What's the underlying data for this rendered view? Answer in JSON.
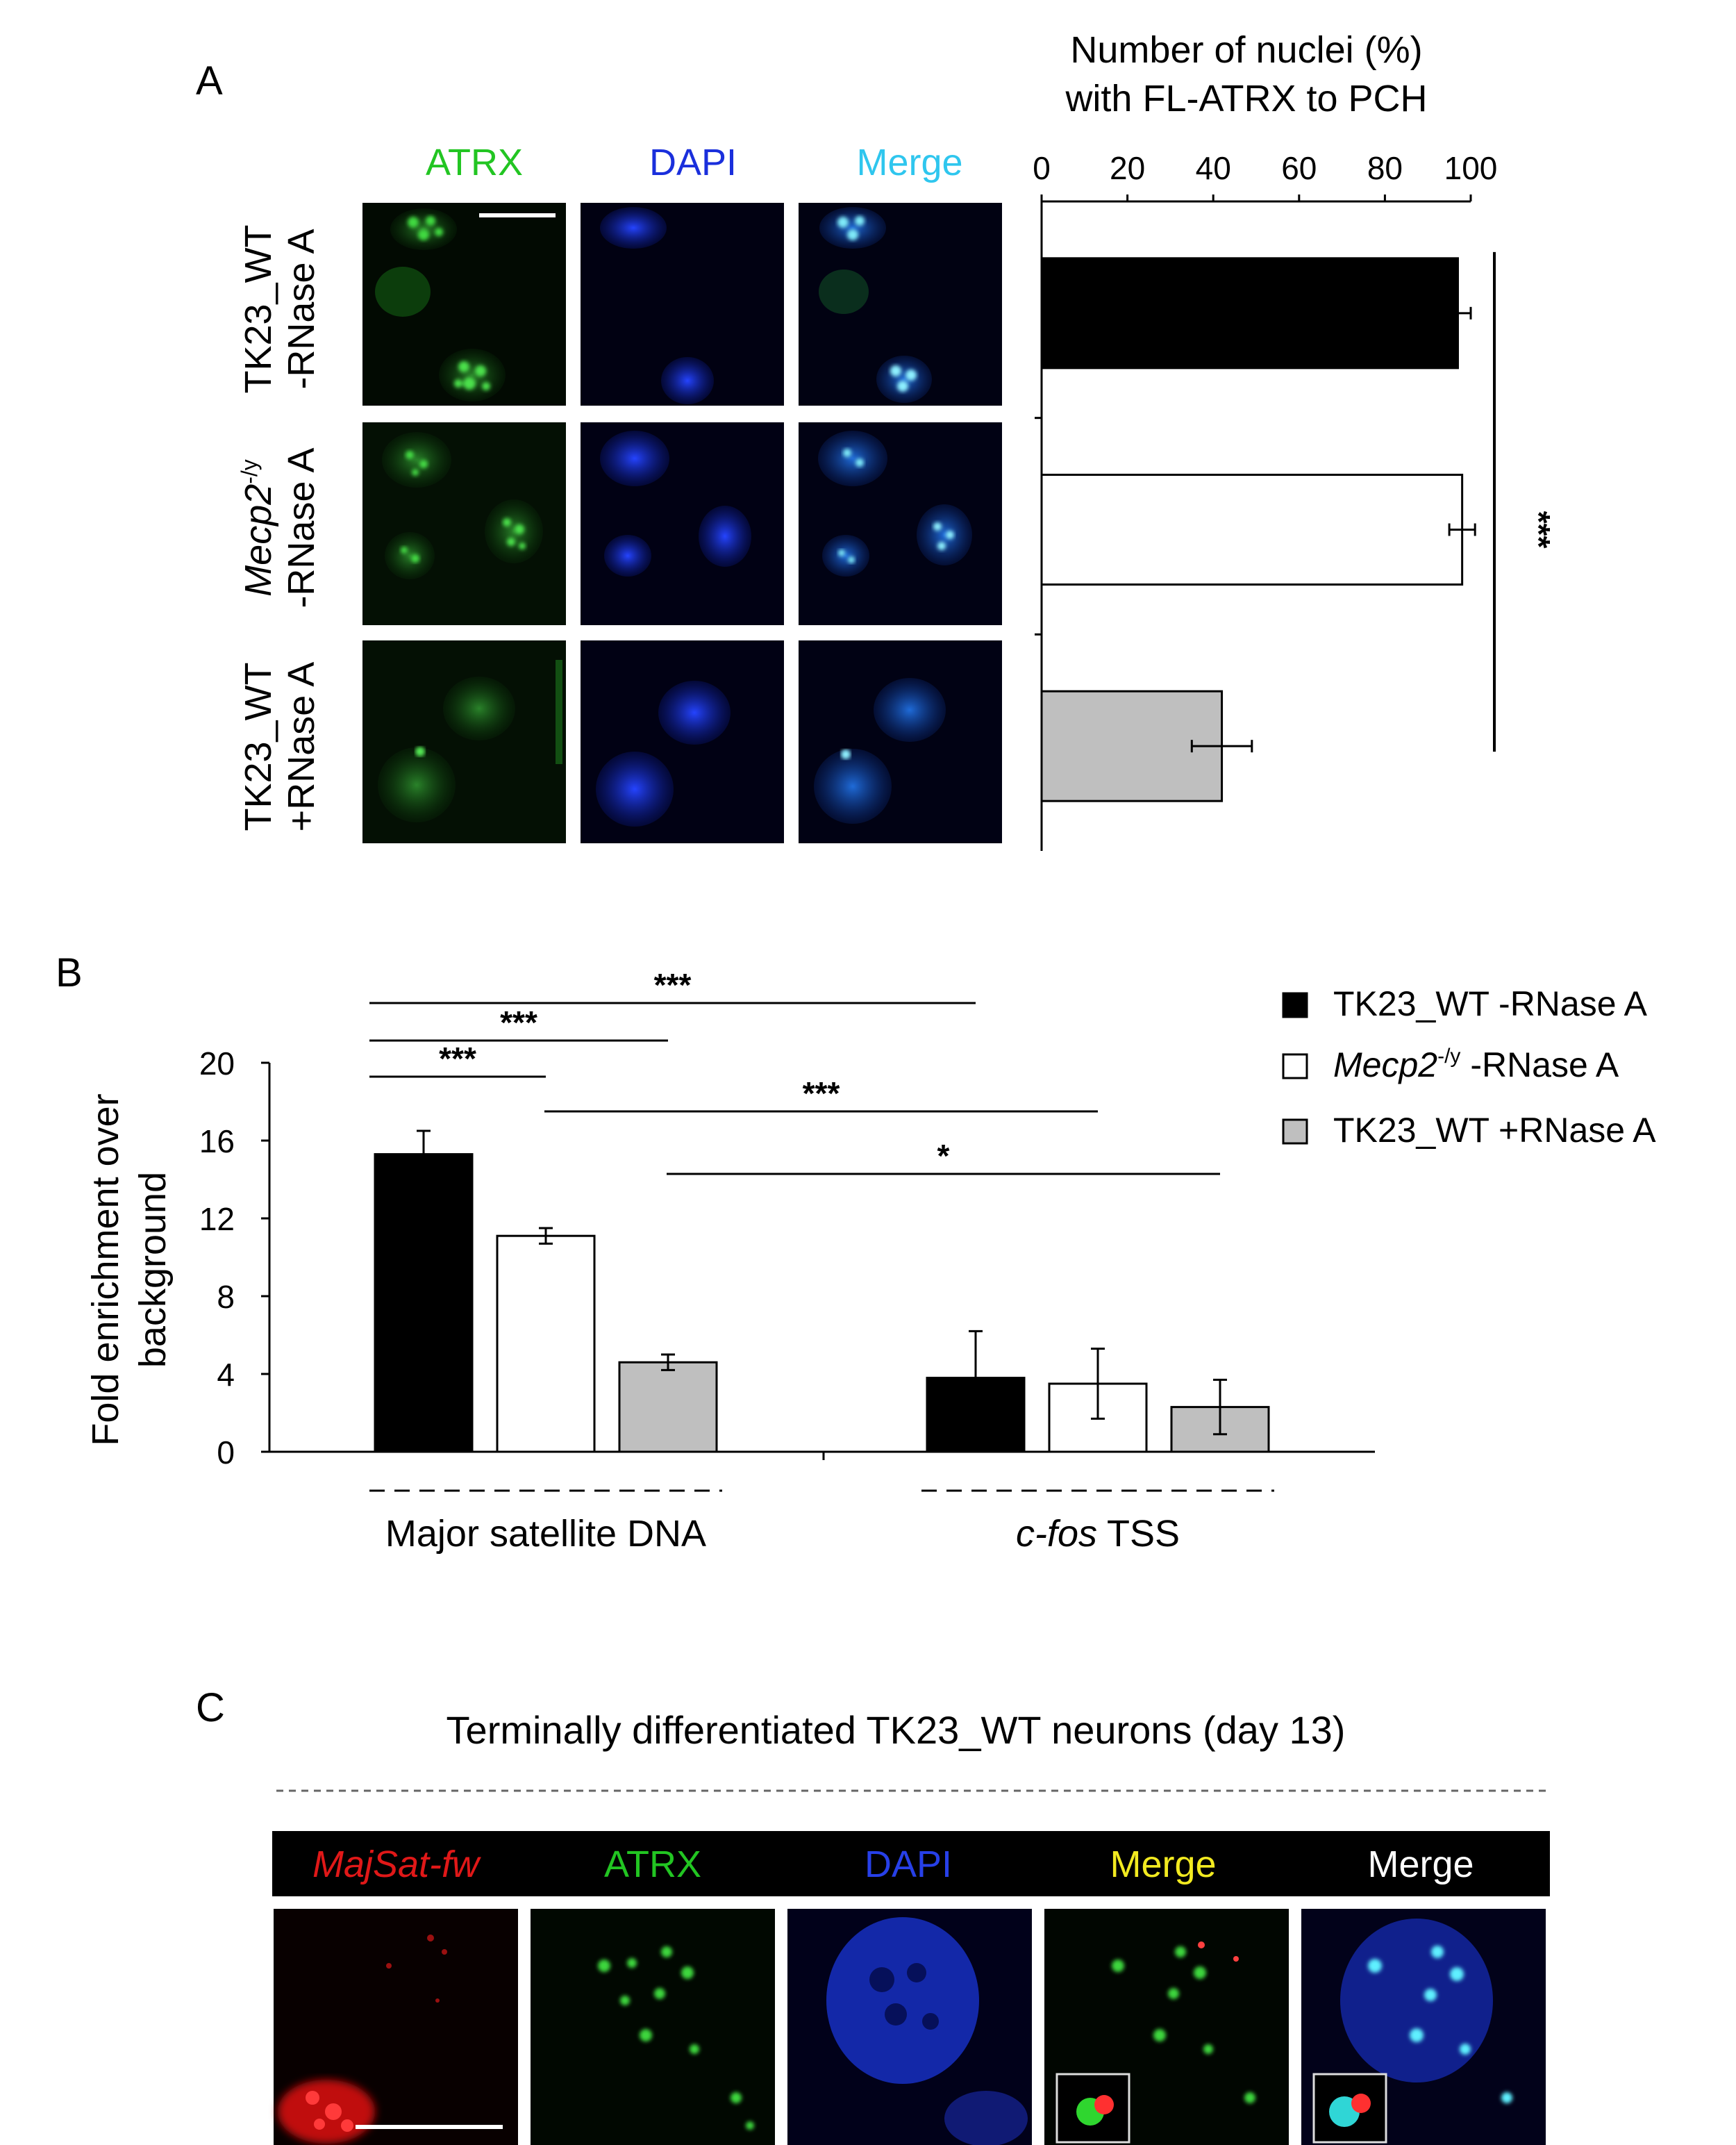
{
  "panel_letters": {
    "a": "A",
    "b": "B",
    "c": "C"
  },
  "panel_a": {
    "channels": [
      "ATRX",
      "DAPI",
      "Merge"
    ],
    "rows": [
      {
        "line1": "TK23_WT",
        "line2": "-RNase A",
        "italic_gene": "",
        "sup": ""
      },
      {
        "line1": "",
        "line2": "-RNase A",
        "italic_gene": "Mecp2",
        "sup": "-/y"
      },
      {
        "line1": "TK23_WT",
        "line2": "+RNase A",
        "italic_gene": "",
        "sup": ""
      }
    ],
    "significance": "***"
  },
  "colors": {
    "atrx_green": "#22c522",
    "dapi_blue": "#1a2fdc",
    "merge_cyan": "#2fc6ee",
    "majsat_red": "#e01818",
    "merge_yellow": "#f2ea20",
    "merge_white": "#ffffff",
    "bar_black": "#000000",
    "bar_white": "#ffffff",
    "bar_gray": "#bfbfbf"
  },
  "chart_data": [
    {
      "type": "bar",
      "orientation": "horizontal",
      "title": "Number of nuclei (%) with  FL-ATRX  to PCH",
      "title_lines": [
        "Number of nuclei (%)",
        "with  FL-ATRX  to PCH"
      ],
      "categories": [
        "TK23_WT -RNase A",
        "Mecp2-/y -RNase A",
        "TK23_WT +RNase A"
      ],
      "values": [
        97,
        98,
        42
      ],
      "errors": [
        3,
        3,
        7
      ],
      "xlim": [
        0,
        100
      ],
      "xticks": [
        "0",
        "20",
        "40",
        "60",
        "80",
        "100"
      ],
      "axis_position": "top",
      "grid": false,
      "significance": [
        {
          "between": [
            0,
            2
          ],
          "label": "***"
        }
      ]
    },
    {
      "type": "bar",
      "title": "",
      "ylabel_lines": [
        "Fold enrichment over",
        "background"
      ],
      "ylim": [
        0,
        20
      ],
      "yticks": [
        "0",
        "4",
        "8",
        "12",
        "16",
        "20"
      ],
      "groups": [
        {
          "label": "Major satellite DNA",
          "italic": ""
        },
        {
          "label": "TSS",
          "italic": "c-fos"
        }
      ],
      "series": [
        {
          "name": "TK23_WT -RNase A",
          "italic_gene": "",
          "sup": "",
          "values": [
            15.3,
            3.8
          ],
          "errors": [
            1.2,
            2.4
          ]
        },
        {
          "name": "-RNase A",
          "italic_gene": "Mecp2",
          "sup": "-/y",
          "values": [
            11.1,
            3.5
          ],
          "errors": [
            0.4,
            1.8
          ]
        },
        {
          "name": "TK23_WT +RNase A",
          "italic_gene": "",
          "sup": "",
          "values": [
            4.6,
            2.3
          ],
          "errors": [
            0.4,
            1.4
          ]
        }
      ],
      "legend_position": "top-right",
      "grid": false,
      "significance": [
        {
          "label": "***"
        },
        {
          "label": "***"
        },
        {
          "label": "***"
        },
        {
          "label": "***"
        },
        {
          "label": "*"
        }
      ]
    }
  ],
  "panel_c": {
    "title": "Terminally differentiated TK23_WT neurons (day 13)",
    "headers": [
      "MajSat-fw",
      "ATRX",
      "DAPI",
      "Merge",
      "Merge"
    ]
  }
}
